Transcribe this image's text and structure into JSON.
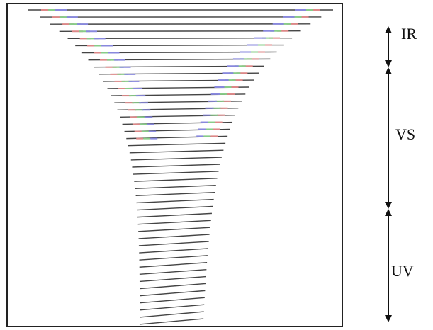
{
  "labels": {
    "ir": "IR",
    "vs": "VS",
    "uv": "UV"
  }
}
